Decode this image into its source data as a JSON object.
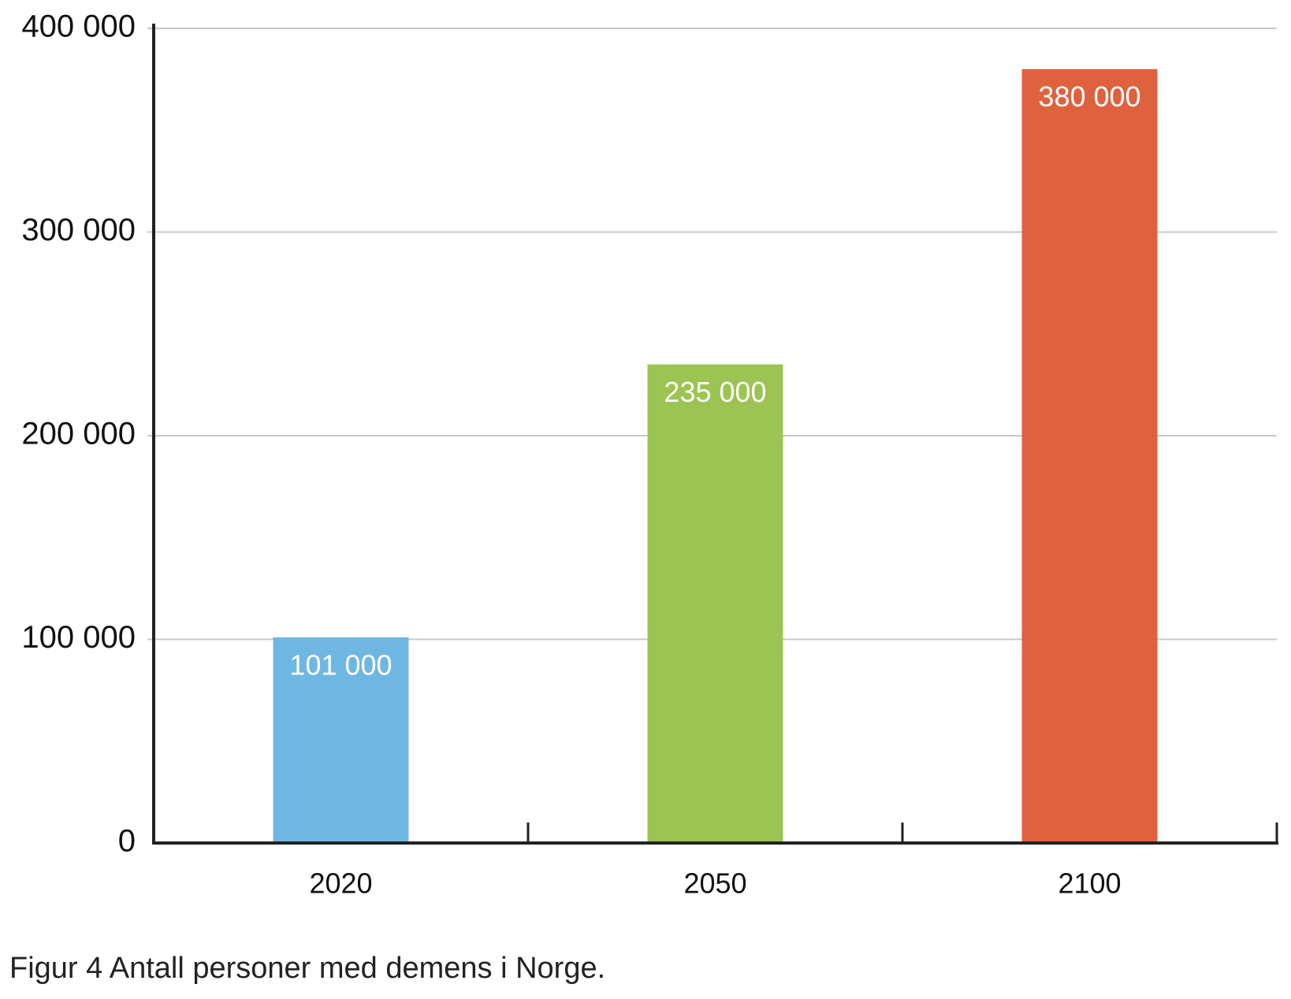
{
  "chart_data": {
    "type": "bar",
    "categories": [
      "2020",
      "2050",
      "2100"
    ],
    "values": [
      101000,
      235000,
      380000
    ],
    "data_labels": [
      "101 000",
      "235 000",
      "380 000"
    ],
    "colors": [
      "#6fb7e3",
      "#9bc453",
      "#de623d"
    ],
    "ylim": [
      0,
      400000
    ],
    "yticks": [
      0,
      100000,
      200000,
      300000,
      400000
    ],
    "ytick_labels": [
      "0",
      "100 000",
      "200 000",
      "300 000",
      "400 000"
    ],
    "grid": true,
    "title": "",
    "xlabel": "",
    "ylabel": ""
  },
  "caption": "Figur 4 Antall personer med demens i Norge."
}
